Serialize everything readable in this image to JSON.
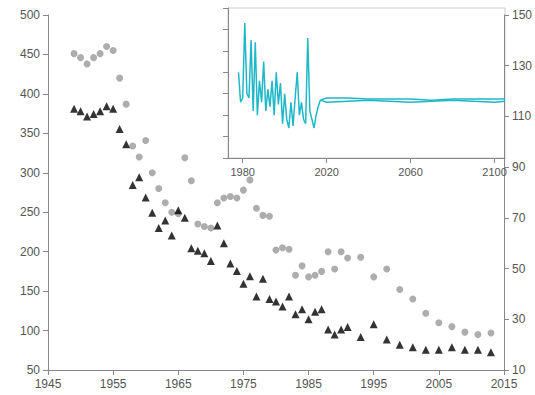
{
  "chart_data": [
    {
      "type": "scatter",
      "x": [
        1949,
        1950,
        1951,
        1952,
        1953,
        1954,
        1955,
        1956,
        1957,
        1958,
        1959,
        1960,
        1961,
        1962,
        1963,
        1964,
        1965,
        1966,
        1967,
        1968,
        1969,
        1970,
        1971,
        1972,
        1973,
        1974,
        1975,
        1976,
        1977,
        1978,
        1979,
        1980,
        1981,
        1982,
        1983,
        1984,
        1985,
        1986,
        1987,
        1988,
        1989,
        1990,
        1991,
        1993,
        1995,
        1997,
        1999,
        2001,
        2003,
        2005,
        2007,
        2009,
        2011,
        2013
      ],
      "series": [
        {
          "color": "#999999",
          "marker": "circle",
          "values": [
            451,
            446,
            438,
            446,
            451,
            460,
            455,
            420,
            387,
            334,
            320,
            341,
            300,
            280,
            262,
            250,
            248,
            319,
            290,
            235,
            232,
            230,
            262,
            268,
            270,
            268,
            278,
            291,
            255,
            246,
            245,
            202,
            205,
            203,
            170,
            182,
            168,
            170,
            175,
            200,
            178,
            200,
            192,
            193,
            168,
            178,
            152,
            140,
            122,
            110,
            105,
            98,
            95,
            97
          ]
        },
        {
          "color": "#000000",
          "marker": "triangle",
          "axis": "y2",
          "values": [
            113,
            112,
            110,
            111,
            112,
            114,
            113,
            105,
            99,
            83,
            86,
            78,
            72,
            66,
            69,
            63,
            73,
            70,
            58,
            57,
            56,
            53,
            67,
            60,
            52,
            49,
            44,
            47,
            39,
            46,
            38,
            37,
            35,
            39,
            32,
            34,
            30,
            33,
            34,
            26,
            24,
            26,
            27,
            23,
            28,
            22,
            20,
            19,
            18,
            18,
            19,
            18,
            18,
            17
          ]
        }
      ],
      "xlim": [
        1945,
        2015
      ],
      "xticks": [
        1945,
        1955,
        1965,
        1975,
        1985,
        1995,
        2005,
        2015
      ],
      "ylim": [
        50,
        500
      ],
      "yticks": [
        50,
        100,
        150,
        200,
        250,
        300,
        350,
        400,
        450,
        500
      ],
      "y2lim": [
        10,
        150
      ],
      "y2ticks": [
        10,
        30,
        50,
        70,
        90,
        110,
        130,
        150
      ],
      "grid": false
    },
    {
      "type": "line",
      "x": [
        1978,
        1979,
        1980,
        1981,
        1982,
        1983,
        1984,
        1985,
        1986,
        1987,
        1988,
        1989,
        1990,
        1991,
        1992,
        1993,
        1994,
        1995,
        1996,
        1997,
        1998,
        1999,
        2000,
        2001,
        2002,
        2003,
        2004,
        2005,
        2006,
        2007,
        2008,
        2009,
        2010,
        2011,
        2012,
        2013,
        2014,
        2015,
        2016,
        2017,
        2020,
        2030,
        2040,
        2050,
        2060,
        2070,
        2080,
        2090,
        2100,
        2105
      ],
      "series": [
        {
          "color": "#1fb8c8",
          "values": [
            4.0,
            2.6,
            2.8,
            6.3,
            3.0,
            2.8,
            5.5,
            2.2,
            5.4,
            2.0,
            3.6,
            2.6,
            4.5,
            2.2,
            3.2,
            2.4,
            3.6,
            2.0,
            4.0,
            2.5,
            3.5,
            1.6,
            3.0,
            1.8,
            1.4,
            2.6,
            1.5,
            2.8,
            4.0,
            2.0,
            2.6,
            1.8,
            1.6,
            5.6,
            2.2,
            1.8,
            1.4,
            2.0,
            2.4,
            2.7,
            null,
            null,
            null,
            null,
            null,
            null,
            null,
            null,
            null,
            null
          ]
        },
        {
          "color": "#1fb8c8",
          "values": [
            null,
            null,
            null,
            null,
            null,
            null,
            null,
            null,
            null,
            null,
            null,
            null,
            null,
            null,
            null,
            null,
            null,
            null,
            null,
            null,
            null,
            null,
            null,
            null,
            null,
            null,
            null,
            null,
            null,
            null,
            null,
            null,
            null,
            null,
            null,
            null,
            null,
            null,
            null,
            2.7,
            2.8,
            2.8,
            2.75,
            2.75,
            2.75,
            2.7,
            2.75,
            2.75,
            2.75,
            2.75
          ]
        },
        {
          "color": "#1fb8c8",
          "values": [
            null,
            null,
            null,
            null,
            null,
            null,
            null,
            null,
            null,
            null,
            null,
            null,
            null,
            null,
            null,
            null,
            null,
            null,
            null,
            null,
            null,
            null,
            null,
            null,
            null,
            null,
            null,
            null,
            null,
            null,
            null,
            null,
            null,
            null,
            null,
            null,
            null,
            null,
            null,
            2.7,
            2.6,
            2.65,
            2.7,
            2.65,
            2.6,
            2.65,
            2.7,
            2.65,
            2.6,
            2.65
          ]
        }
      ],
      "xlim": [
        1973,
        2105
      ],
      "xticks": [
        1980,
        2020,
        2060,
        2100
      ],
      "ylim": [
        0,
        7
      ],
      "yticks": [
        0,
        1,
        2,
        3,
        4,
        5,
        6,
        7
      ],
      "tick_labels": "x",
      "grid": false
    }
  ]
}
